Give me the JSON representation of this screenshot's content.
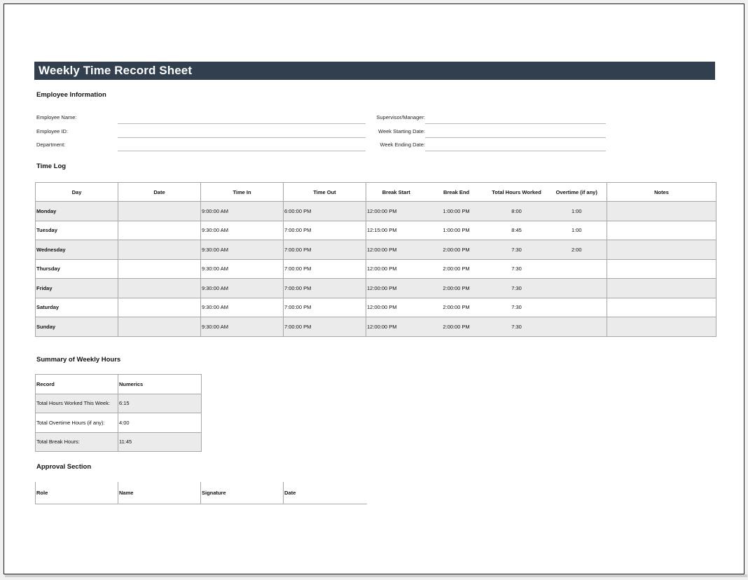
{
  "title": "Weekly Time Record Sheet",
  "employee_info": {
    "heading": "Employee Information",
    "left_fields": [
      "Employee Name:",
      "Employee ID:",
      "Department:"
    ],
    "right_fields": [
      "Supervisor/Manager:",
      "Week Starting Date:",
      "Week Ending Date:"
    ]
  },
  "time_log": {
    "heading": "Time Log",
    "columns": [
      "Day",
      "Date",
      "Time In",
      "Time Out",
      "Break Start",
      "Break End",
      "Total Hours Worked",
      "Overtime (if any)",
      "Notes"
    ],
    "rows": [
      {
        "day": "Monday",
        "date": "",
        "time_in": "9:00:00 AM",
        "time_out": "6:00:00 PM",
        "break_start": "12:00:00 PM",
        "break_end": "1:00:00 PM",
        "total": "8:00",
        "overtime": "1:00",
        "notes": ""
      },
      {
        "day": "Tuesday",
        "date": "",
        "time_in": "9:30:00 AM",
        "time_out": "7:00:00 PM",
        "break_start": "12:15:00 PM",
        "break_end": "1:00:00 PM",
        "total": "8:45",
        "overtime": "1:00",
        "notes": ""
      },
      {
        "day": "Wednesday",
        "date": "",
        "time_in": "9:30:00 AM",
        "time_out": "7:00:00 PM",
        "break_start": "12:00:00 PM",
        "break_end": "2:00:00 PM",
        "total": "7:30",
        "overtime": "2:00",
        "notes": ""
      },
      {
        "day": "Thursday",
        "date": "",
        "time_in": "9:30:00 AM",
        "time_out": "7:00:00 PM",
        "break_start": "12:00:00 PM",
        "break_end": "2:00:00 PM",
        "total": "7:30",
        "overtime": "",
        "notes": ""
      },
      {
        "day": "Friday",
        "date": "",
        "time_in": "9:30:00 AM",
        "time_out": "7:00:00 PM",
        "break_start": "12:00:00 PM",
        "break_end": "2:00:00 PM",
        "total": "7:30",
        "overtime": "",
        "notes": ""
      },
      {
        "day": "Saturday",
        "date": "",
        "time_in": "9:30:00 AM",
        "time_out": "7:00:00 PM",
        "break_start": "12:00:00 PM",
        "break_end": "2:00:00 PM",
        "total": "7:30",
        "overtime": "",
        "notes": ""
      },
      {
        "day": "Sunday",
        "date": "",
        "time_in": "9:30:00 AM",
        "time_out": "7:00:00 PM",
        "break_start": "12:00:00 PM",
        "break_end": "2:00:00 PM",
        "total": "7:30",
        "overtime": "",
        "notes": ""
      }
    ]
  },
  "summary": {
    "heading": "Summary of Weekly Hours",
    "columns": [
      "Record",
      "Numerics"
    ],
    "rows": [
      {
        "record": "Total Hours Worked This Week:",
        "value": "6:15"
      },
      {
        "record": "Total Overtime Hours (if any):",
        "value": "4:00"
      },
      {
        "record": "Total Break Hours:",
        "value": "11:45"
      }
    ]
  },
  "approval": {
    "heading": "Approval Section",
    "columns": [
      "Role",
      "Name",
      "Signature",
      "Date"
    ]
  },
  "colors": {
    "title_bar": "#323f4f",
    "row_shade": "#ebebeb",
    "grid": "#a7a7a7"
  }
}
